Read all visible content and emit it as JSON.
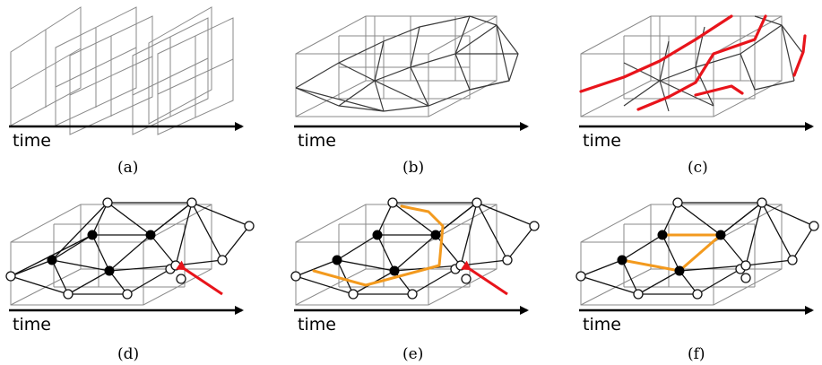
{
  "panels": [
    {
      "id": "a",
      "caption": "(a)",
      "axis_label": "time"
    },
    {
      "id": "b",
      "caption": "(b)",
      "axis_label": "time"
    },
    {
      "id": "c",
      "caption": "(c)",
      "axis_label": "time"
    },
    {
      "id": "d",
      "caption": "(d)",
      "axis_label": "time"
    },
    {
      "id": "e",
      "caption": "(e)",
      "axis_label": "time"
    },
    {
      "id": "f",
      "caption": "(f)",
      "axis_label": "time"
    }
  ],
  "colors": {
    "grid": "#8a8a8a",
    "mesh": "#111111",
    "highlight_red": "#e8141b",
    "highlight_orange": "#f39a1e"
  }
}
